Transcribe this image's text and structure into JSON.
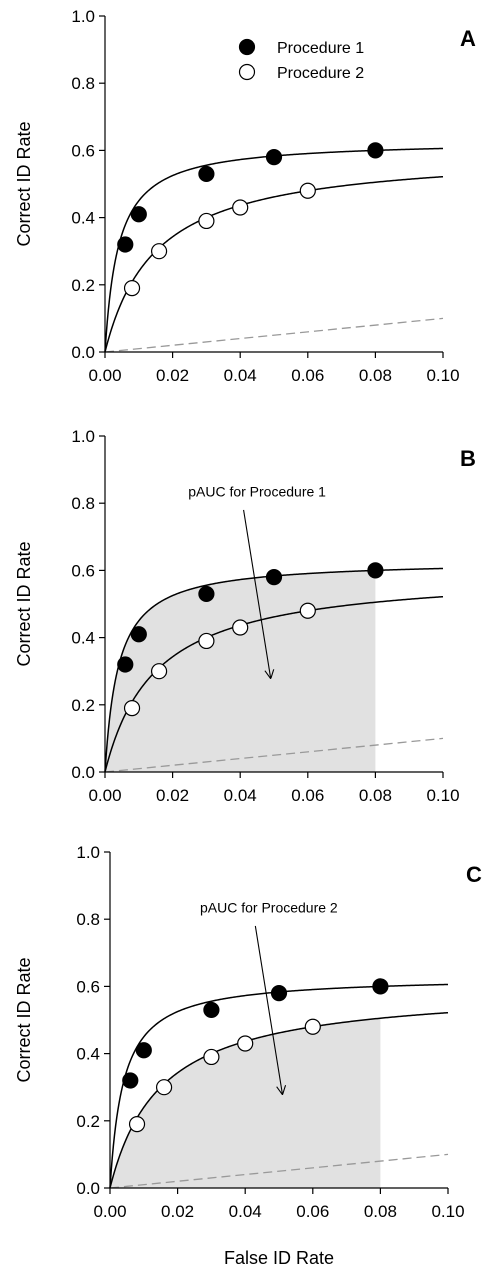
{
  "chart_data": [
    {
      "type": "line",
      "panel_label": "A",
      "xlabel": "",
      "ylabel": "Correct ID Rate",
      "xlim": [
        0,
        0.1
      ],
      "ylim": [
        0,
        1.0
      ],
      "x_ticks": [
        "0.00",
        "0.02",
        "0.04",
        "0.06",
        "0.08",
        "0.10"
      ],
      "y_ticks": [
        "0.0",
        "0.2",
        "0.4",
        "0.6",
        "0.8",
        "1.0"
      ],
      "legend": {
        "placement": "top-right",
        "entries": [
          {
            "label": "Procedure 1",
            "marker": "filled-circle"
          },
          {
            "label": "Procedure 2",
            "marker": "open-circle"
          }
        ]
      },
      "series": [
        {
          "name": "Procedure 1",
          "marker": "filled",
          "points": [
            [
              0.006,
              0.32
            ],
            [
              0.01,
              0.41
            ],
            [
              0.03,
              0.53
            ],
            [
              0.05,
              0.58
            ],
            [
              0.08,
              0.6
            ]
          ],
          "fit": {
            "ymax": 0.63,
            "k": 0.004
          }
        },
        {
          "name": "Procedure 2",
          "marker": "open",
          "points": [
            [
              0.008,
              0.19
            ],
            [
              0.016,
              0.3
            ],
            [
              0.03,
              0.39
            ],
            [
              0.04,
              0.43
            ],
            [
              0.06,
              0.48
            ]
          ],
          "fit": {
            "ymax": 0.6,
            "k": 0.015
          }
        }
      ],
      "chance_line": {
        "style": "dashed",
        "from": [
          0,
          0
        ],
        "to": [
          0.1,
          0.1
        ]
      },
      "shaded_area": null,
      "annotation": null
    },
    {
      "type": "line",
      "panel_label": "B",
      "xlabel": "",
      "ylabel": "Correct ID Rate",
      "xlim": [
        0,
        0.1
      ],
      "ylim": [
        0,
        1.0
      ],
      "x_ticks": [
        "0.00",
        "0.02",
        "0.04",
        "0.06",
        "0.08",
        "0.10"
      ],
      "y_ticks": [
        "0.0",
        "0.2",
        "0.4",
        "0.6",
        "0.8",
        "1.0"
      ],
      "legend": null,
      "series": [
        {
          "name": "Procedure 1",
          "marker": "filled",
          "points": [
            [
              0.006,
              0.32
            ],
            [
              0.01,
              0.41
            ],
            [
              0.03,
              0.53
            ],
            [
              0.05,
              0.58
            ],
            [
              0.08,
              0.6
            ]
          ],
          "fit": {
            "ymax": 0.63,
            "k": 0.004
          }
        },
        {
          "name": "Procedure 2",
          "marker": "open",
          "points": [
            [
              0.008,
              0.19
            ],
            [
              0.016,
              0.3
            ],
            [
              0.03,
              0.39
            ],
            [
              0.04,
              0.43
            ],
            [
              0.06,
              0.48
            ]
          ],
          "fit": {
            "ymax": 0.6,
            "k": 0.015
          }
        }
      ],
      "chance_line": {
        "style": "dashed",
        "from": [
          0,
          0
        ],
        "to": [
          0.1,
          0.1
        ]
      },
      "shaded_area": {
        "series": "Procedure 1",
        "x_from": 0,
        "x_to": 0.08,
        "color": "#e1e1e1"
      },
      "annotation": {
        "text": "pAUC for Procedure 1",
        "text_at": [
          0.045,
          0.82
        ],
        "arrow_from": [
          0.041,
          0.78
        ],
        "arrow_to": [
          0.049,
          0.28
        ]
      }
    },
    {
      "type": "line",
      "panel_label": "C",
      "xlabel": "False ID Rate",
      "ylabel": "Correct ID Rate",
      "xlim": [
        0,
        0.1
      ],
      "ylim": [
        0,
        1.0
      ],
      "x_ticks": [
        "0.00",
        "0.02",
        "0.04",
        "0.06",
        "0.08",
        "0.10"
      ],
      "y_ticks": [
        "0.0",
        "0.2",
        "0.4",
        "0.6",
        "0.8",
        "1.0"
      ],
      "legend": null,
      "series": [
        {
          "name": "Procedure 1",
          "marker": "filled",
          "points": [
            [
              0.006,
              0.32
            ],
            [
              0.01,
              0.41
            ],
            [
              0.03,
              0.53
            ],
            [
              0.05,
              0.58
            ],
            [
              0.08,
              0.6
            ]
          ],
          "fit": {
            "ymax": 0.63,
            "k": 0.004
          }
        },
        {
          "name": "Procedure 2",
          "marker": "open",
          "points": [
            [
              0.008,
              0.19
            ],
            [
              0.016,
              0.3
            ],
            [
              0.03,
              0.39
            ],
            [
              0.04,
              0.43
            ],
            [
              0.06,
              0.48
            ]
          ],
          "fit": {
            "ymax": 0.6,
            "k": 0.015
          }
        }
      ],
      "chance_line": {
        "style": "dashed",
        "from": [
          0,
          0
        ],
        "to": [
          0.1,
          0.1
        ]
      },
      "shaded_area": {
        "series": "Procedure 2",
        "x_from": 0,
        "x_to": 0.08,
        "color": "#e1e1e1"
      },
      "annotation": {
        "text": "pAUC for Procedure 2",
        "text_at": [
          0.047,
          0.82
        ],
        "arrow_from": [
          0.043,
          0.78
        ],
        "arrow_to": [
          0.051,
          0.28
        ]
      }
    }
  ]
}
